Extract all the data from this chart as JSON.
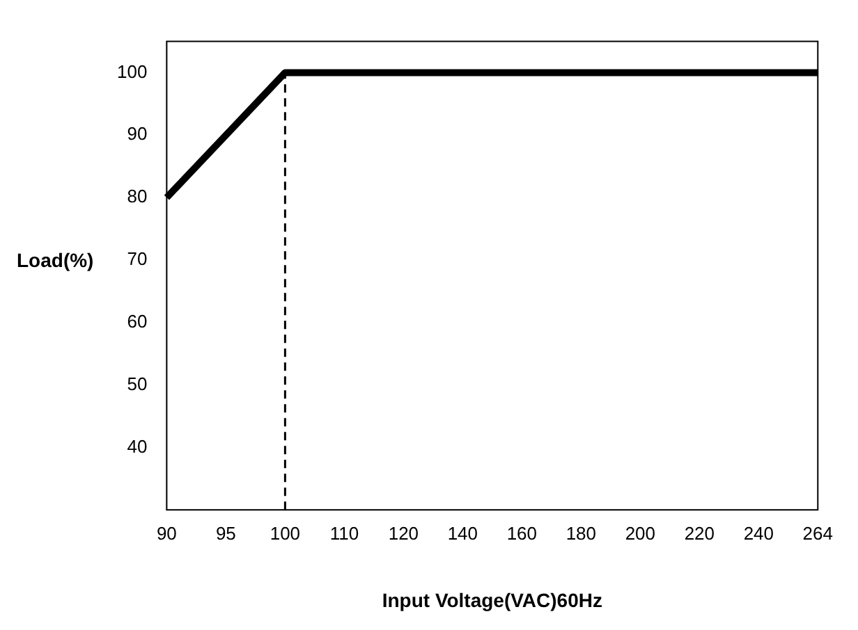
{
  "chart_data": {
    "type": "line",
    "xlabel": "Input Voltage(VAC)60Hz",
    "ylabel": "Load(%)",
    "categories": [
      "90",
      "95",
      "100",
      "110",
      "120",
      "140",
      "160",
      "180",
      "200",
      "220",
      "240",
      "264"
    ],
    "series": [
      {
        "color": "#000000",
        "values": [
          80,
          90,
          100,
          100,
          100,
          100,
          100,
          100,
          100,
          100,
          100,
          100
        ]
      }
    ],
    "ylim": [
      30,
      105
    ],
    "yticks": [
      40,
      50,
      60,
      70,
      80,
      90,
      100
    ],
    "ref_lines": [
      {
        "axis": "x",
        "value": "100",
        "color": "#000000",
        "line_style": "dashed"
      }
    ],
    "grid": false,
    "legend": false,
    "marker": "none",
    "line_style": "solid"
  }
}
